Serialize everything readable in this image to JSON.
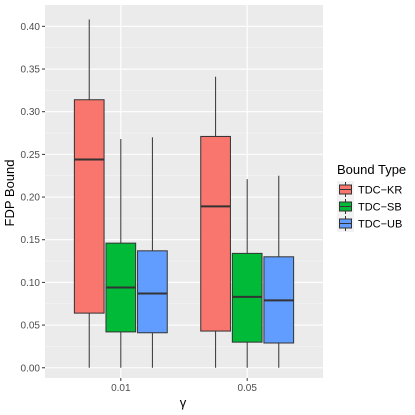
{
  "chart_data": {
    "type": "boxplot",
    "title": "",
    "xlabel": "γ",
    "ylabel": "FDP Bound",
    "categories": [
      "0.01",
      "0.05"
    ],
    "ylim": [
      -0.012,
      0.425
    ],
    "yticks": [
      "0.00",
      "0.05",
      "0.10",
      "0.15",
      "0.20",
      "0.25",
      "0.30",
      "0.35",
      "0.40"
    ],
    "grid": true,
    "legend": {
      "title": "Bound Type",
      "position": "right"
    },
    "series": [
      {
        "name": "TDC−KR",
        "color": "#F8766D",
        "boxes": [
          {
            "min": 0.0,
            "q1": 0.064,
            "median": 0.244,
            "q3": 0.314,
            "max": 0.408
          },
          {
            "min": 0.0,
            "q1": 0.043,
            "median": 0.189,
            "q3": 0.271,
            "max": 0.341
          }
        ]
      },
      {
        "name": "TDC−SB",
        "color": "#00BA38",
        "boxes": [
          {
            "min": 0.0,
            "q1": 0.042,
            "median": 0.094,
            "q3": 0.146,
            "max": 0.268
          },
          {
            "min": 0.0,
            "q1": 0.03,
            "median": 0.083,
            "q3": 0.134,
            "max": 0.221
          }
        ]
      },
      {
        "name": "TDC−UB",
        "color": "#619CFF",
        "boxes": [
          {
            "min": 0.0,
            "q1": 0.041,
            "median": 0.087,
            "q3": 0.137,
            "max": 0.27
          },
          {
            "min": 0.0,
            "q1": 0.029,
            "median": 0.079,
            "q3": 0.13,
            "max": 0.225
          }
        ]
      }
    ]
  }
}
